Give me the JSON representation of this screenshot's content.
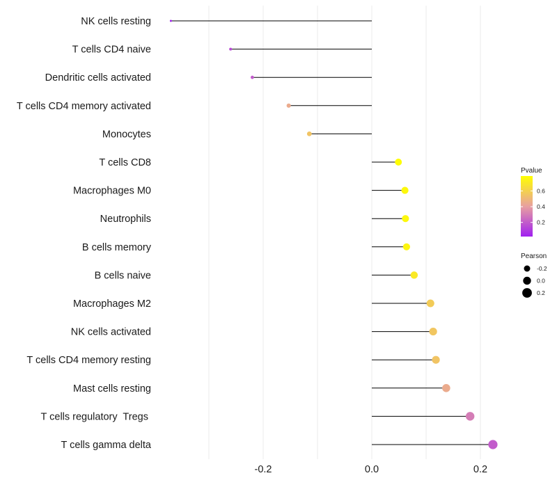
{
  "chart_data": {
    "type": "lollipop",
    "title": "",
    "xlabel": "",
    "ylabel": "",
    "xlim": [
      -0.4,
      0.28
    ],
    "x_ticks": [
      {
        "value": -0.2,
        "label": "-0.2"
      },
      {
        "value": 0.0,
        "label": "0.0"
      },
      {
        "value": 0.2,
        "label": "0.2"
      }
    ],
    "categories": [
      "NK cells resting",
      "T cells CD4 naive",
      "Dendritic cells activated",
      "T cells CD4 memory activated",
      "Monocytes",
      "T cells CD8",
      "Macrophages M0",
      "Neutrophils",
      "B cells memory",
      "B cells naive",
      "Macrophages M2",
      "NK cells activated",
      "T cells CD4 memory resting",
      "Mast cells resting",
      "T cells regulatory  Tregs ",
      "T cells gamma delta"
    ],
    "pearson": [
      -0.37,
      -0.26,
      -0.22,
      -0.153,
      -0.115,
      0.049,
      0.061,
      0.062,
      0.064,
      0.078,
      0.108,
      0.113,
      0.118,
      0.137,
      0.181,
      0.223
    ],
    "pvalue": [
      0.02,
      0.15,
      0.2,
      0.45,
      0.55,
      0.78,
      0.76,
      0.76,
      0.75,
      0.7,
      0.58,
      0.56,
      0.55,
      0.45,
      0.3,
      0.2
    ],
    "legend": {
      "color_title": "Pvalue",
      "color_ticks": [
        {
          "value": 0.2,
          "label": "0.2"
        },
        {
          "value": 0.4,
          "label": "0.4"
        },
        {
          "value": 0.6,
          "label": "0.6"
        }
      ],
      "color_range": [
        0.02,
        0.79
      ],
      "size_title": "Pearson",
      "size_items": [
        {
          "value": -0.2,
          "label": "-0.2"
        },
        {
          "value": 0.0,
          "label": "0.0"
        },
        {
          "value": 0.2,
          "label": "0.2"
        }
      ],
      "placement": "right"
    },
    "colors": {
      "low": "#a020f0",
      "mid": "#e8a0a0",
      "high": "#ffff00",
      "gridline": "#ebebeb",
      "segment": "#000000"
    }
  }
}
